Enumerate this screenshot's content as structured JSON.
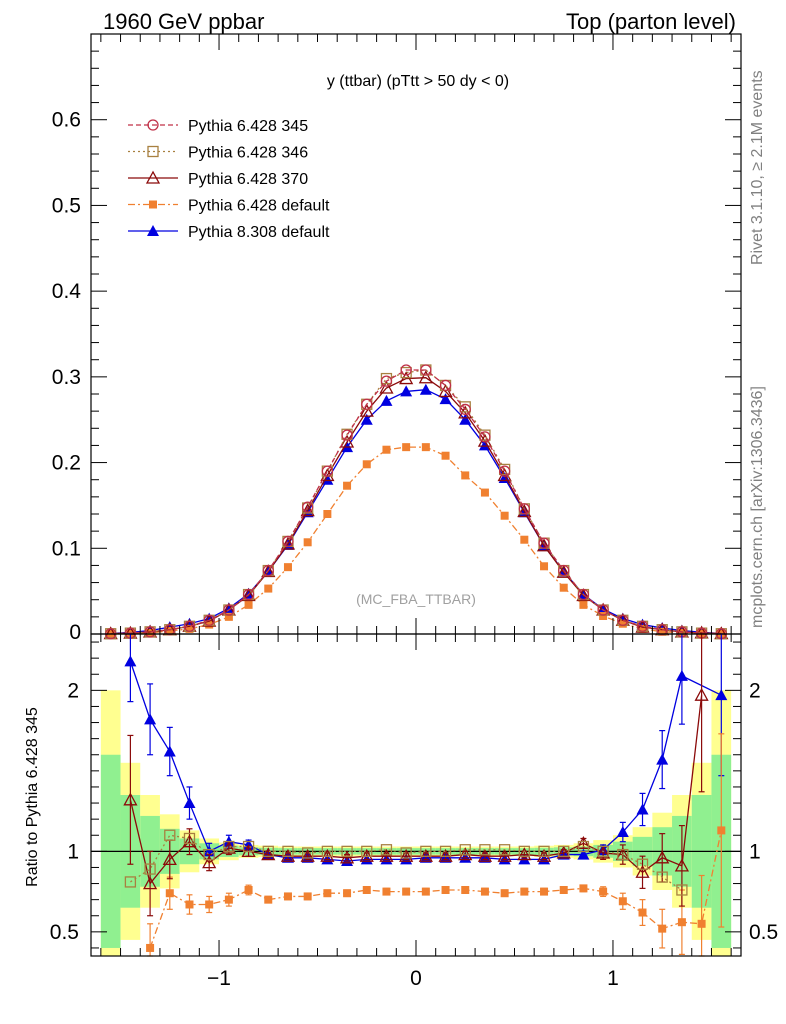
{
  "header": {
    "left": "1960 GeV ppbar",
    "right": "Top (parton level)"
  },
  "side": {
    "rivet": "Rivet 3.1.10, ≥ 2.1M events",
    "source": "mcplots.cern.ch [arXiv:1306.3436]"
  },
  "main": {
    "title": "y (ttbar) (pTtt > 50 dy < 0)",
    "watermark": "(MC_FBA_TTBAR)"
  },
  "ratio": {
    "ylabel": "Ratio to Pythia 6.428 345"
  },
  "colors": {
    "p345": "#c03048",
    "p346": "#a88040",
    "p370": "#8b0a0a",
    "p6def": "#f08030",
    "p8def": "#0000e0",
    "band_green": "#90f090",
    "band_yellow": "#ffff90"
  },
  "chart_data": [
    {
      "type": "line",
      "title": "y (ttbar) (pTtt > 50 dy < 0)",
      "xlim": [
        -1.65,
        1.65
      ],
      "ylim": [
        0,
        0.7
      ],
      "yticks": [
        0.1,
        0.2,
        0.3,
        0.4,
        0.5,
        0.6
      ],
      "ytick_labels": [
        "0.1",
        "0.2",
        "0.3",
        "0.4",
        "0.5",
        "0.6"
      ],
      "zero_label": "0",
      "x": [
        -1.55,
        -1.45,
        -1.35,
        -1.25,
        -1.15,
        -1.05,
        -0.95,
        -0.85,
        -0.75,
        -0.65,
        -0.55,
        -0.45,
        -0.35,
        -0.25,
        -0.15,
        -0.05,
        0.05,
        0.15,
        0.25,
        0.35,
        0.45,
        0.55,
        0.65,
        0.75,
        0.85,
        0.95,
        1.05,
        1.15,
        1.25,
        1.35,
        1.45,
        1.55
      ],
      "legend": [
        "Pythia 6.428 345",
        "Pythia 6.428 346",
        "Pythia 6.428 370",
        "Pythia 6.428 default",
        "Pythia 8.308 default"
      ],
      "series": [
        {
          "name": "Pythia 6.428 345",
          "values": [
            0.0003,
            0.001,
            0.0025,
            0.005,
            0.009,
            0.016,
            0.028,
            0.046,
            0.074,
            0.108,
            0.148,
            0.19,
            0.232,
            0.268,
            0.295,
            0.308,
            0.308,
            0.29,
            0.262,
            0.23,
            0.19,
            0.146,
            0.106,
            0.074,
            0.046,
            0.028,
            0.016,
            0.009,
            0.005,
            0.0025,
            0.001,
            0.0003
          ]
        },
        {
          "name": "Pythia 6.428 346",
          "values": [
            0.0003,
            0.001,
            0.0025,
            0.005,
            0.009,
            0.016,
            0.028,
            0.046,
            0.074,
            0.108,
            0.147,
            0.19,
            0.233,
            0.268,
            0.298,
            0.305,
            0.308,
            0.29,
            0.265,
            0.232,
            0.192,
            0.146,
            0.106,
            0.074,
            0.046,
            0.028,
            0.016,
            0.009,
            0.005,
            0.0025,
            0.001,
            0.0003
          ]
        },
        {
          "name": "Pythia 6.428 370",
          "values": [
            0.0004,
            0.001,
            0.0024,
            0.005,
            0.009,
            0.015,
            0.028,
            0.045,
            0.073,
            0.105,
            0.144,
            0.185,
            0.224,
            0.26,
            0.287,
            0.298,
            0.299,
            0.283,
            0.258,
            0.225,
            0.185,
            0.143,
            0.103,
            0.072,
            0.045,
            0.028,
            0.016,
            0.008,
            0.005,
            0.0023,
            0.0013,
            0.0005
          ]
        },
        {
          "name": "Pythia 6.428 default",
          "values": [
            0.0002,
            0.0005,
            0.0013,
            0.0036,
            0.006,
            0.011,
            0.02,
            0.034,
            0.053,
            0.078,
            0.107,
            0.14,
            0.173,
            0.198,
            0.215,
            0.218,
            0.218,
            0.208,
            0.185,
            0.165,
            0.138,
            0.11,
            0.079,
            0.054,
            0.034,
            0.021,
            0.012,
            0.006,
            0.0026,
            0.0014,
            0.0006,
            0.0002
          ]
        },
        {
          "name": "Pythia 8.308 default",
          "values": [
            0.0006,
            0.0018,
            0.004,
            0.008,
            0.012,
            0.018,
            0.03,
            0.047,
            0.073,
            0.104,
            0.142,
            0.18,
            0.218,
            0.25,
            0.272,
            0.283,
            0.285,
            0.274,
            0.25,
            0.22,
            0.182,
            0.142,
            0.103,
            0.073,
            0.046,
            0.029,
            0.018,
            0.011,
            0.007,
            0.004,
            0.002,
            0.0006
          ]
        }
      ]
    },
    {
      "type": "line",
      "ylabel": "Ratio to Pythia 6.428 345",
      "xlim": [
        -1.65,
        1.65
      ],
      "ylim": [
        0.35,
        2.35
      ],
      "yticks": [
        0.5,
        1,
        2
      ],
      "ytick_labels": [
        "0.5",
        "1",
        "2"
      ],
      "xticks": [
        -1,
        0,
        1
      ],
      "xtick_labels": [
        "−1",
        "0",
        "1"
      ],
      "reference": 1,
      "x": [
        -1.55,
        -1.45,
        -1.35,
        -1.25,
        -1.15,
        -1.05,
        -0.95,
        -0.85,
        -0.75,
        -0.65,
        -0.55,
        -0.45,
        -0.35,
        -0.25,
        -0.15,
        -0.05,
        0.05,
        0.15,
        0.25,
        0.35,
        0.45,
        0.55,
        0.65,
        0.75,
        0.85,
        0.95,
        1.05,
        1.15,
        1.25,
        1.35,
        1.45,
        1.55
      ],
      "band": {
        "green_half": [
          0.6,
          0.35,
          0.22,
          0.14,
          0.08,
          0.05,
          0.035,
          0.025,
          0.022,
          0.02,
          0.02,
          0.02,
          0.02,
          0.02,
          0.02,
          0.02,
          0.02,
          0.02,
          0.02,
          0.02,
          0.02,
          0.02,
          0.022,
          0.025,
          0.03,
          0.04,
          0.06,
          0.09,
          0.15,
          0.22,
          0.35,
          0.6
        ],
        "yellow_half": [
          1.0,
          0.55,
          0.35,
          0.23,
          0.13,
          0.08,
          0.055,
          0.04,
          0.035,
          0.03,
          0.03,
          0.03,
          0.03,
          0.03,
          0.03,
          0.03,
          0.03,
          0.03,
          0.03,
          0.03,
          0.03,
          0.03,
          0.035,
          0.04,
          0.05,
          0.07,
          0.1,
          0.15,
          0.24,
          0.35,
          0.55,
          1.0
        ]
      },
      "series": [
        {
          "name": "Pythia 6.428 346",
          "values": [
            null,
            0.81,
            0.89,
            1.1,
            1.08,
            0.98,
            1.03,
            1.03,
            1.0,
            1.0,
            0.99,
            1.0,
            1.0,
            1.0,
            1.01,
            0.99,
            1.0,
            1.0,
            1.01,
            1.01,
            1.01,
            1.0,
            1.0,
            1.0,
            1.03,
            1.0,
            0.98,
            0.92,
            0.84,
            0.76,
            null,
            null
          ]
        },
        {
          "name": "Pythia 6.428 370",
          "values": [
            null,
            1.32,
            0.8,
            0.95,
            1.06,
            0.93,
            1.02,
            1.0,
            0.98,
            0.97,
            0.97,
            0.97,
            0.96,
            0.97,
            0.97,
            0.97,
            0.97,
            0.97,
            0.98,
            0.97,
            0.97,
            0.98,
            0.97,
            0.99,
            1.05,
            0.99,
            0.98,
            0.87,
            0.96,
            0.91,
            1.97,
            null
          ]
        },
        {
          "name": "Pythia 6.428 default",
          "values": [
            null,
            null,
            0.4,
            0.74,
            0.67,
            0.67,
            0.7,
            0.76,
            0.7,
            0.72,
            0.72,
            0.74,
            0.74,
            0.76,
            0.75,
            0.75,
            0.75,
            0.76,
            0.76,
            0.75,
            0.74,
            0.75,
            0.75,
            0.76,
            0.77,
            0.75,
            0.69,
            0.62,
            0.52,
            0.56,
            0.55,
            1.13
          ]
        },
        {
          "name": "Pythia 8.308 default",
          "values": [
            null,
            2.18,
            1.82,
            1.62,
            1.3,
            1.0,
            1.06,
            1.04,
            0.98,
            0.96,
            0.96,
            0.95,
            0.94,
            0.95,
            0.95,
            0.95,
            0.96,
            0.96,
            0.96,
            0.96,
            0.95,
            0.95,
            0.95,
            0.98,
            0.98,
            1.01,
            1.12,
            1.26,
            1.57,
            2.09,
            null,
            1.97
          ]
        }
      ],
      "errors": {
        "Pythia 8.308 default": [
          0,
          0.25,
          0.22,
          0.15,
          0.1,
          0.05,
          0.04,
          0.03,
          0.02,
          0.02,
          0.02,
          0.02,
          0.02,
          0.02,
          0.02,
          0.02,
          0.02,
          0.02,
          0.02,
          0.02,
          0.02,
          0.02,
          0.02,
          0.02,
          0.02,
          0.03,
          0.06,
          0.1,
          0.18,
          0.3,
          0,
          0.5
        ],
        "Pythia 6.428 370": [
          0,
          0.4,
          0.2,
          0.12,
          0.08,
          0.05,
          0.04,
          0.03,
          0.02,
          0.02,
          0.02,
          0.02,
          0.02,
          0.02,
          0.02,
          0.02,
          0.02,
          0.02,
          0.02,
          0.02,
          0.02,
          0.02,
          0.02,
          0.02,
          0.03,
          0.04,
          0.06,
          0.1,
          0.15,
          0.25,
          0.6,
          0
        ],
        "Pythia 6.428 default": [
          0,
          0,
          0.15,
          0.1,
          0.06,
          0.05,
          0.04,
          0.03,
          0.02,
          0.02,
          0.02,
          0.02,
          0.02,
          0.02,
          0.02,
          0.02,
          0.02,
          0.02,
          0.02,
          0.02,
          0.02,
          0.02,
          0.02,
          0.02,
          0.02,
          0.03,
          0.05,
          0.08,
          0.12,
          0.2,
          0.3,
          0.6
        ]
      }
    }
  ]
}
